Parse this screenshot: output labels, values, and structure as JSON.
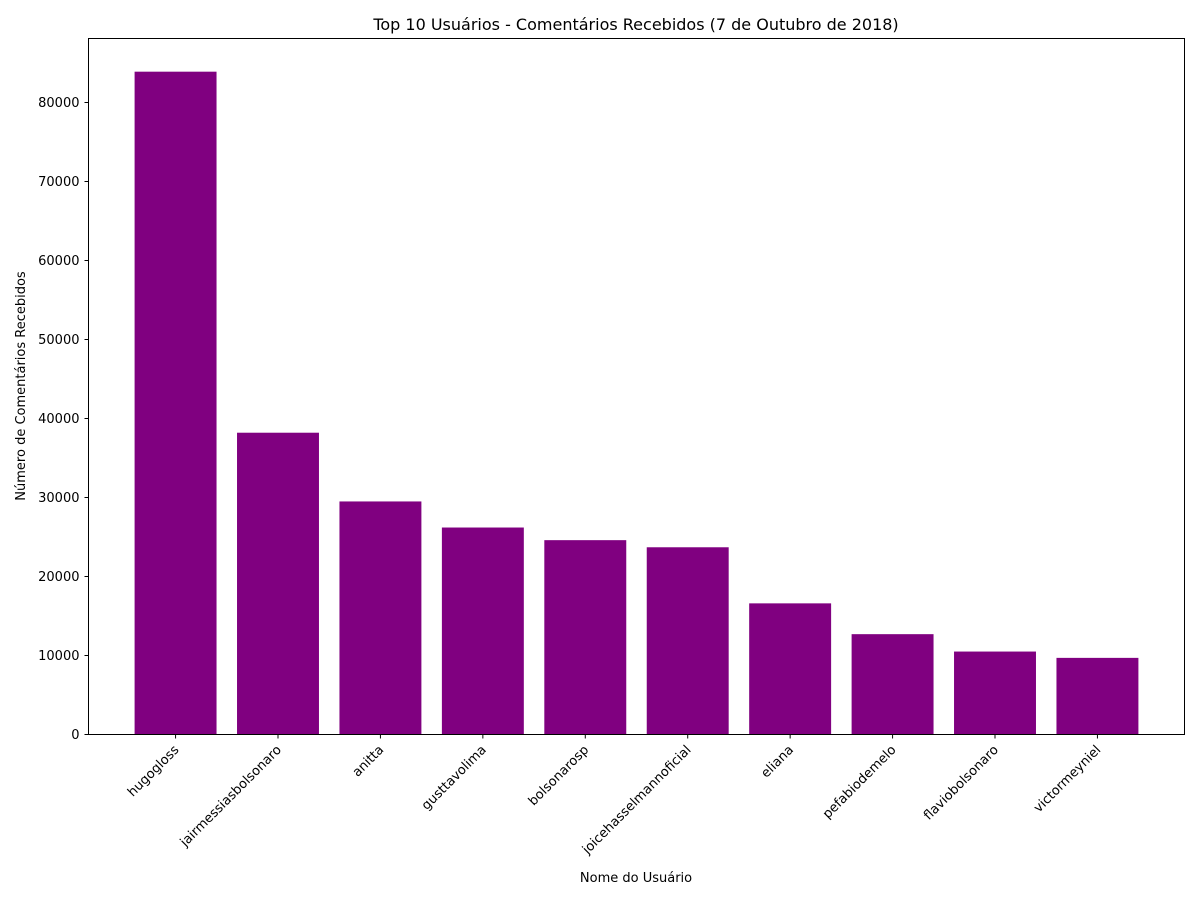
{
  "chart_data": {
    "type": "bar",
    "title": "Top 10 Usuários - Comentários Recebidos (7 de Outubro de 2018)",
    "xlabel": "Nome do Usuário",
    "ylabel": "Número de Comentários Recebidos",
    "categories": [
      "hugogloss",
      "jairmessiasbolsonaro",
      "anitta",
      "gusttavolima",
      "bolsonarosp",
      "joicehasselmannoficial",
      "eliana",
      "pefabiodemelo",
      "flaviobolsonaro",
      "victormeyniel"
    ],
    "values": [
      83900,
      38200,
      29500,
      26200,
      24600,
      23700,
      16600,
      12700,
      10500,
      9700
    ],
    "ylim": [
      0,
      88100
    ],
    "yticks": [
      0,
      10000,
      20000,
      30000,
      40000,
      50000,
      60000,
      70000,
      80000
    ],
    "bar_color": "#800080",
    "grid": false,
    "legend": "none"
  }
}
